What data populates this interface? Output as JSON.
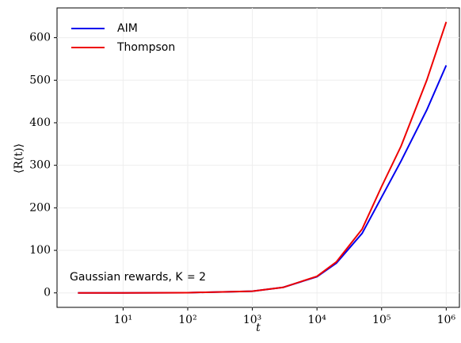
{
  "chart_data": {
    "type": "line",
    "xlabel": "t",
    "ylabel": "⟨R(t)⟩",
    "annotation": "Gaussian rewards, K = 2",
    "x": [
      2,
      10,
      100,
      1000,
      3000,
      10000,
      20000,
      50000,
      100000,
      200000,
      500000,
      1000000
    ],
    "series": [
      {
        "name": "AIM",
        "color": "#0000ee",
        "values": [
          0,
          0,
          0.5,
          4,
          13,
          38,
          70,
          140,
          225,
          310,
          430,
          535
        ]
      },
      {
        "name": "Thompson",
        "color": "#ee0000",
        "values": [
          0,
          0,
          0.5,
          4,
          13,
          39,
          73,
          150,
          250,
          345,
          500,
          637
        ]
      }
    ],
    "xlog": true,
    "xlim": [
      0.95,
      1600000
    ],
    "xticks": [
      {
        "value": 10,
        "label": "10¹"
      },
      {
        "value": 100,
        "label": "10²"
      },
      {
        "value": 1000,
        "label": "10³"
      },
      {
        "value": 10000,
        "label": "10⁴"
      },
      {
        "value": 100000,
        "label": "10⁵"
      },
      {
        "value": 1000000,
        "label": "10⁶"
      }
    ],
    "ylim": [
      -34,
      670
    ],
    "yticks": [
      0,
      100,
      200,
      300,
      400,
      500,
      600
    ],
    "grid": true,
    "legend": "upper-left"
  }
}
